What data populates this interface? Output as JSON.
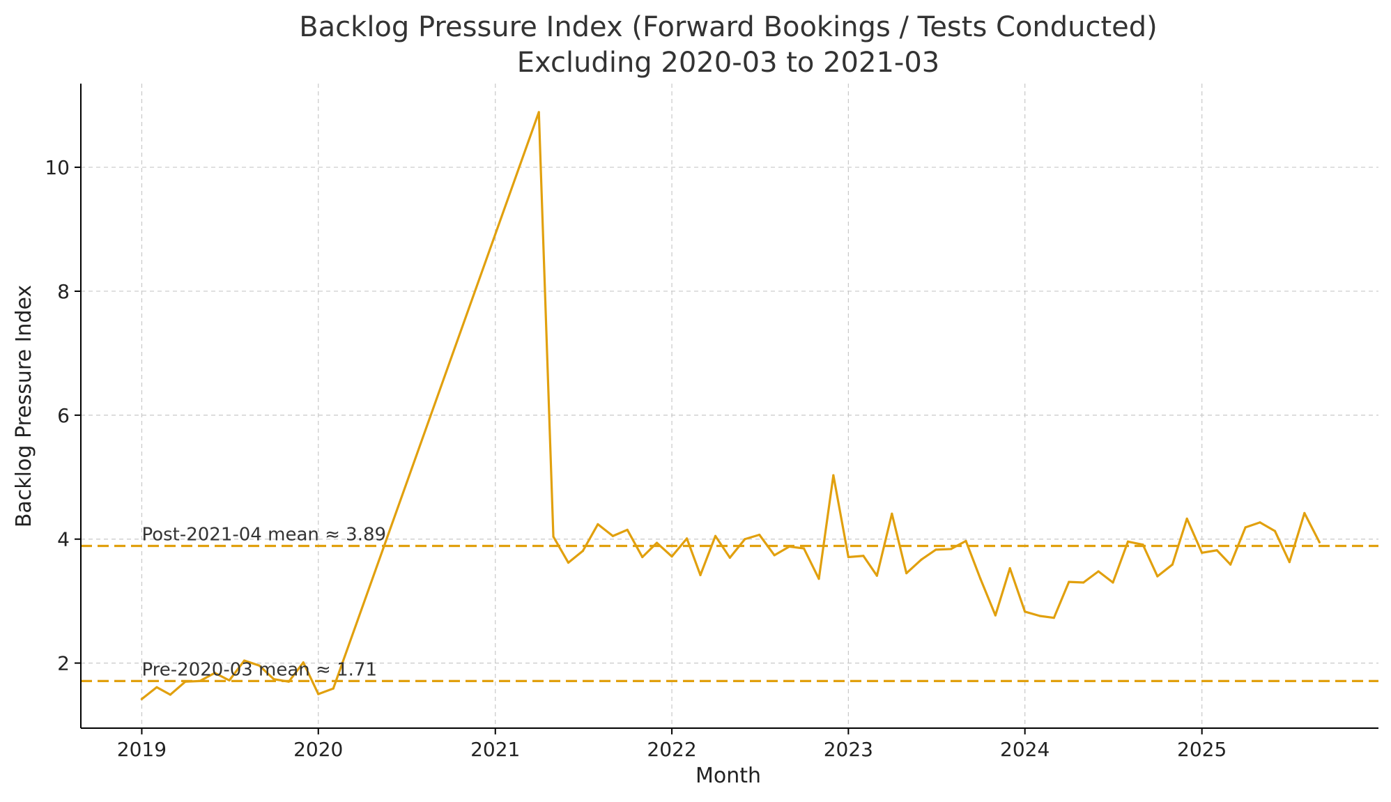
{
  "chart_data": {
    "type": "line",
    "title": "Backlog Pressure Index (Forward Bookings / Tests Conducted)",
    "subtitle": "Excluding 2020-03 to 2021-03",
    "xlabel": "Month",
    "ylabel": "Backlog Pressure Index",
    "xlim": [
      "2018-08-28",
      "2026-01-01"
    ],
    "ylim": [
      0.95,
      11.35
    ],
    "grid": true,
    "x_ticks": [
      "2019",
      "2020",
      "2021",
      "2022",
      "2023",
      "2024",
      "2025"
    ],
    "y_ticks": [
      2,
      4,
      6,
      8,
      10
    ],
    "series": [
      {
        "color": "#E1A00E",
        "points": [
          [
            "2019-01-01",
            1.42
          ],
          [
            "2019-02-01",
            1.61
          ],
          [
            "2019-03-01",
            1.49
          ],
          [
            "2019-04-01",
            1.7
          ],
          [
            "2019-05-01",
            1.71
          ],
          [
            "2019-06-01",
            1.84
          ],
          [
            "2019-07-01",
            1.72
          ],
          [
            "2019-08-01",
            2.04
          ],
          [
            "2019-09-01",
            1.96
          ],
          [
            "2019-10-01",
            1.74
          ],
          [
            "2019-11-01",
            1.7
          ],
          [
            "2019-12-01",
            2.01
          ],
          [
            "2020-01-01",
            1.5
          ],
          [
            "2020-02-01",
            1.59
          ],
          [
            "2021-04-01",
            10.89
          ],
          [
            "2021-05-01",
            4.04
          ],
          [
            "2021-06-01",
            3.62
          ],
          [
            "2021-07-01",
            3.81
          ],
          [
            "2021-08-01",
            4.24
          ],
          [
            "2021-09-01",
            4.05
          ],
          [
            "2021-10-01",
            4.15
          ],
          [
            "2021-11-01",
            3.71
          ],
          [
            "2021-12-01",
            3.94
          ],
          [
            "2022-01-01",
            3.72
          ],
          [
            "2022-02-01",
            4.01
          ],
          [
            "2022-03-01",
            3.42
          ],
          [
            "2022-04-01",
            4.05
          ],
          [
            "2022-05-01",
            3.7
          ],
          [
            "2022-06-01",
            4.0
          ],
          [
            "2022-07-01",
            4.07
          ],
          [
            "2022-08-01",
            3.74
          ],
          [
            "2022-09-01",
            3.88
          ],
          [
            "2022-10-01",
            3.85
          ],
          [
            "2022-11-01",
            3.36
          ],
          [
            "2022-12-01",
            5.03
          ],
          [
            "2023-01-01",
            3.71
          ],
          [
            "2023-02-01",
            3.73
          ],
          [
            "2023-03-01",
            3.41
          ],
          [
            "2023-04-01",
            4.41
          ],
          [
            "2023-05-01",
            3.45
          ],
          [
            "2023-06-01",
            3.67
          ],
          [
            "2023-07-01",
            3.83
          ],
          [
            "2023-08-01",
            3.84
          ],
          [
            "2023-09-01",
            3.97
          ],
          [
            "2023-10-01",
            3.36
          ],
          [
            "2023-11-01",
            2.77
          ],
          [
            "2023-12-01",
            3.53
          ],
          [
            "2024-01-01",
            2.83
          ],
          [
            "2024-02-01",
            2.76
          ],
          [
            "2024-03-01",
            2.73
          ],
          [
            "2024-04-01",
            3.31
          ],
          [
            "2024-05-01",
            3.3
          ],
          [
            "2024-06-01",
            3.48
          ],
          [
            "2024-07-01",
            3.3
          ],
          [
            "2024-08-01",
            3.96
          ],
          [
            "2024-09-01",
            3.91
          ],
          [
            "2024-10-01",
            3.4
          ],
          [
            "2024-11-01",
            3.59
          ],
          [
            "2024-12-01",
            4.33
          ],
          [
            "2025-01-01",
            3.78
          ],
          [
            "2025-02-01",
            3.82
          ],
          [
            "2025-03-01",
            3.59
          ],
          [
            "2025-04-01",
            4.19
          ],
          [
            "2025-05-01",
            4.27
          ],
          [
            "2025-06-01",
            4.13
          ],
          [
            "2025-07-01",
            3.63
          ],
          [
            "2025-08-01",
            4.42
          ],
          [
            "2025-09-01",
            3.95
          ]
        ]
      }
    ],
    "reference_lines": [
      {
        "value": 3.89,
        "color": "#E1A00E",
        "style": "dashed",
        "label": "Post-2021-04 mean ≈ 3.89"
      },
      {
        "value": 1.71,
        "color": "#E1A00E",
        "style": "dashed",
        "label": "Pre-2020-03 mean ≈ 1.71"
      }
    ]
  }
}
